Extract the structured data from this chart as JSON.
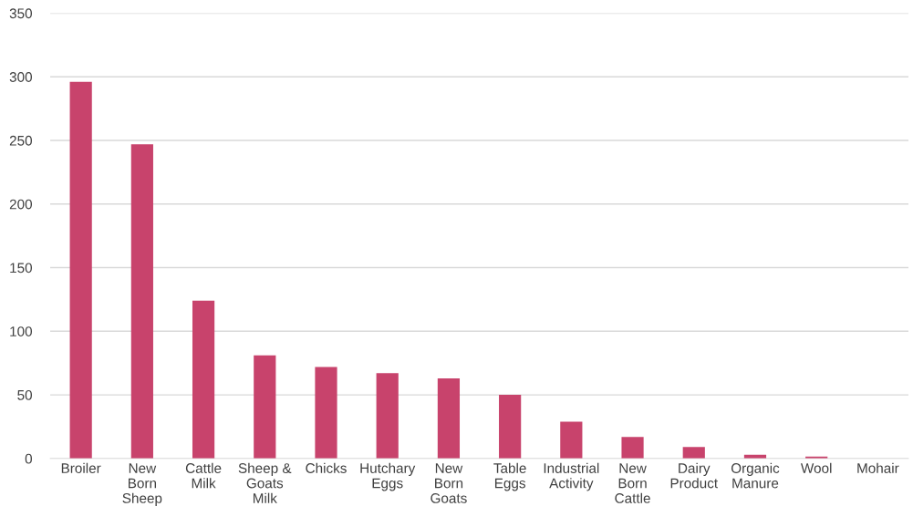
{
  "chart_data": {
    "type": "bar",
    "categories": [
      "Broiler",
      "New Born Sheep",
      "Cattle Milk",
      "Sheep & Goats Milk",
      "Chicks",
      "Hutchary Eggs",
      "New Born Goats",
      "Table Eggs",
      "Industrial Activity",
      "New Born Cattle",
      "Dairy Product",
      "Organic Manure",
      "Wool",
      "Mohair"
    ],
    "values": [
      296,
      247,
      124,
      81,
      72,
      67,
      63,
      50,
      29,
      17,
      9,
      3,
      1.5,
      0
    ],
    "color": "#c8436c",
    "ylim": [
      0,
      350
    ],
    "yticks": [
      0,
      50,
      100,
      150,
      200,
      250,
      300,
      350
    ],
    "grid": "y"
  }
}
